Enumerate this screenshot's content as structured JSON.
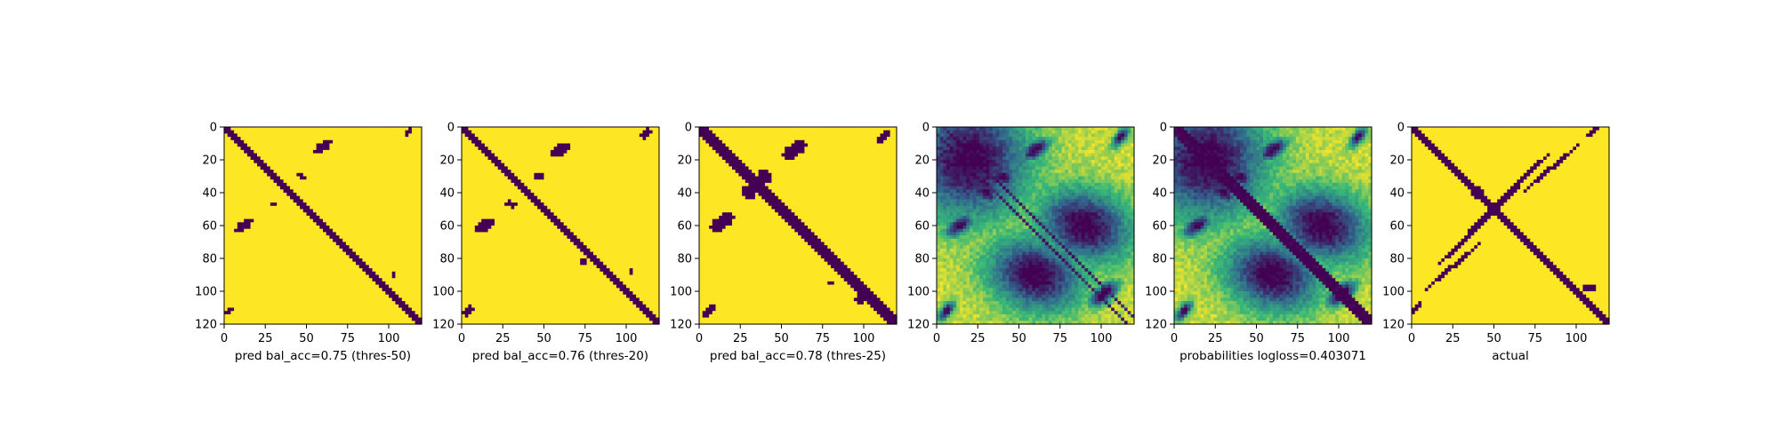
{
  "colors": {
    "low": "#440154",
    "mid1": "#31688e",
    "mid2": "#35b779",
    "high": "#fde725"
  },
  "chart_data": [
    {
      "type": "heatmap",
      "mode": "binary",
      "xlabel": "pred bal_acc=0.75 (thres-50)",
      "xticks": [
        0,
        25,
        50,
        75,
        100
      ],
      "yticks": [
        0,
        20,
        40,
        60,
        80,
        100,
        120
      ],
      "xlim": [
        0,
        120
      ],
      "ylim": [
        120,
        0
      ],
      "diagonal_halfwidth": 2.2,
      "blobs": [
        [
          60,
          12,
          5,
          2.5,
          -0.6
        ],
        [
          12,
          60,
          5,
          2.5,
          -0.6
        ],
        [
          112,
          3,
          3,
          1.8,
          -0.8
        ],
        [
          3,
          112,
          3,
          1.8,
          -0.8
        ],
        [
          47,
          30,
          2.5,
          1.5,
          0.3
        ],
        [
          30,
          47,
          2.5,
          1.5,
          0.3
        ],
        [
          103,
          90,
          1.5,
          1.2,
          0
        ]
      ]
    },
    {
      "type": "heatmap",
      "mode": "binary",
      "xlabel": "pred bal_acc=0.76 (thres-20)",
      "xticks": [
        0,
        25,
        50,
        75,
        100
      ],
      "yticks": [
        0,
        20,
        40,
        60,
        80,
        100,
        120
      ],
      "xlim": [
        0,
        120
      ],
      "ylim": [
        120,
        0
      ],
      "diagonal_halfwidth": 2.6,
      "blobs": [
        [
          60,
          14,
          6,
          3,
          -0.6
        ],
        [
          14,
          60,
          6,
          3,
          -0.6
        ],
        [
          112,
          4,
          3.5,
          2,
          -0.8
        ],
        [
          4,
          112,
          3.5,
          2,
          -0.8
        ],
        [
          47,
          30,
          3,
          1.8,
          0.3
        ],
        [
          30,
          47,
          3,
          1.8,
          0.3
        ],
        [
          103,
          88,
          2,
          1.4,
          0
        ],
        [
          74,
          82,
          2,
          1.2,
          0.5
        ]
      ]
    },
    {
      "type": "heatmap",
      "mode": "binary",
      "xlabel": "pred bal_acc=0.78 (thres-25)",
      "xticks": [
        0,
        25,
        50,
        75,
        100
      ],
      "yticks": [
        0,
        20,
        40,
        60,
        80,
        100,
        120
      ],
      "xlim": [
        0,
        120
      ],
      "ylim": [
        120,
        0
      ],
      "diagonal_halfwidth": 3.2,
      "blobs": [
        [
          58,
          14,
          7,
          3.5,
          -0.6
        ],
        [
          14,
          58,
          7,
          3.5,
          -0.6
        ],
        [
          112,
          6,
          4,
          2,
          -0.9
        ],
        [
          6,
          112,
          4,
          2,
          -0.9
        ],
        [
          40,
          30,
          4,
          3,
          0.6
        ],
        [
          30,
          40,
          4,
          3,
          0.6
        ],
        [
          100,
          103,
          5,
          3,
          -0.6
        ],
        [
          80,
          95,
          2,
          1.5,
          0
        ]
      ]
    },
    {
      "type": "heatmap",
      "mode": "continuous",
      "xlabel": "",
      "xticks": [
        0,
        25,
        50,
        75,
        100
      ],
      "yticks": [
        0,
        20,
        40,
        60,
        80,
        100,
        120
      ],
      "xlim": [
        0,
        120
      ],
      "ylim": [
        120,
        0
      ],
      "diagonal_halfwidth": 0,
      "offset_diagonals": [
        -4,
        4
      ],
      "blobs": [
        [
          60,
          14,
          7,
          3.5,
          -0.6
        ],
        [
          14,
          60,
          7,
          3.5,
          -0.6
        ],
        [
          112,
          6,
          5,
          2.2,
          -0.9
        ],
        [
          6,
          112,
          5,
          2.2,
          -0.9
        ],
        [
          40,
          30,
          6,
          4,
          0.6
        ],
        [
          30,
          40,
          6,
          4,
          0.6
        ],
        [
          100,
          103,
          6,
          3.5,
          -0.6
        ],
        [
          103,
          100,
          6,
          3.5,
          -0.6
        ],
        [
          20,
          20,
          25,
          25,
          0
        ],
        [
          90,
          60,
          20,
          15,
          0.3
        ],
        [
          60,
          90,
          20,
          15,
          0.3
        ]
      ]
    },
    {
      "type": "heatmap",
      "mode": "continuous",
      "xlabel": "probabilities logloss=0.403071",
      "xticks": [
        0,
        25,
        50,
        75,
        100
      ],
      "yticks": [
        0,
        20,
        40,
        60,
        80,
        100,
        120
      ],
      "xlim": [
        0,
        120
      ],
      "ylim": [
        120,
        0
      ],
      "diagonal_halfwidth": 3.5,
      "offset_diagonals": [],
      "blobs": [
        [
          60,
          14,
          7,
          3.5,
          -0.6
        ],
        [
          14,
          60,
          7,
          3.5,
          -0.6
        ],
        [
          112,
          6,
          5,
          2.2,
          -0.9
        ],
        [
          6,
          112,
          5,
          2.2,
          -0.9
        ],
        [
          40,
          30,
          6,
          4,
          0.6
        ],
        [
          30,
          40,
          6,
          4,
          0.6
        ],
        [
          100,
          103,
          6,
          3.5,
          -0.6
        ],
        [
          103,
          100,
          6,
          3.5,
          -0.6
        ],
        [
          20,
          20,
          25,
          25,
          0
        ],
        [
          90,
          60,
          20,
          15,
          0.3
        ],
        [
          60,
          90,
          20,
          15,
          0.3
        ]
      ]
    },
    {
      "type": "heatmap",
      "mode": "binary",
      "xlabel": "actual",
      "xticks": [
        0,
        25,
        50,
        75,
        100
      ],
      "yticks": [
        0,
        20,
        40,
        60,
        80,
        100,
        120
      ],
      "xlim": [
        0,
        120
      ],
      "ylim": [
        120,
        0
      ],
      "diagonal_halfwidth": 2.0,
      "blobs": [
        [
          60,
          40,
          30,
          1.3,
          -0.8
        ],
        [
          40,
          60,
          30,
          1.3,
          -0.8
        ],
        [
          85,
          25,
          22,
          1.1,
          -0.7
        ],
        [
          25,
          85,
          22,
          1.1,
          -0.7
        ],
        [
          110,
          3,
          4,
          1.5,
          -0.9
        ],
        [
          3,
          110,
          4,
          1.5,
          -0.9
        ],
        [
          40,
          40,
          4,
          3,
          0
        ],
        [
          108,
          98,
          3,
          1.8,
          0
        ]
      ]
    }
  ]
}
